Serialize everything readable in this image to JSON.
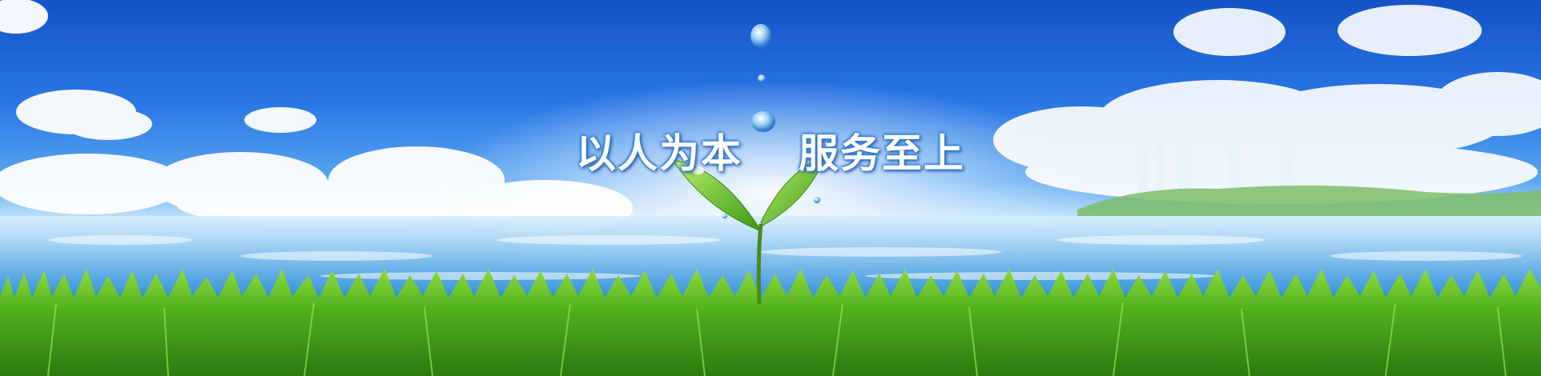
{
  "banner": {
    "slogan_left": "以人为本",
    "slogan_right": "服务至上"
  },
  "colors": {
    "sky_top": "#1453c8",
    "sky_mid": "#5aa6f2",
    "water": "#3e9be0",
    "grass": "#4fae1e",
    "text_outline": "#2f7fd6"
  },
  "icons": [
    "water-drop-icon",
    "sprout-icon",
    "cloud-icon",
    "grass-icon"
  ]
}
